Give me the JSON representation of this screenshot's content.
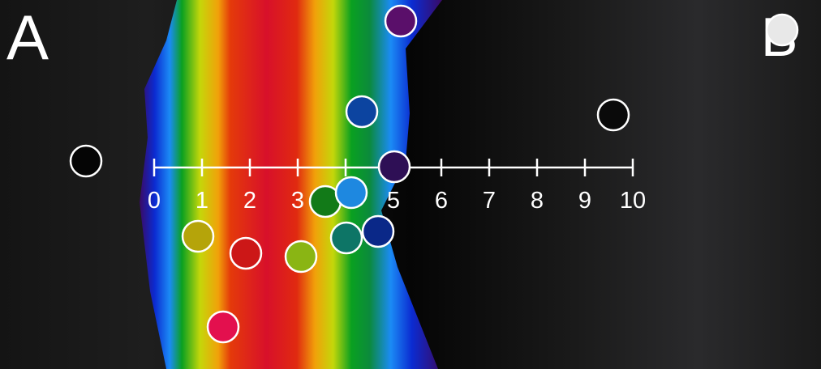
{
  "panel_labels": {
    "left": "A",
    "right": "B"
  },
  "scale": {
    "min": 0,
    "max": 10,
    "ticks": [
      "0",
      "1",
      "2",
      "3",
      "4",
      "5",
      "6",
      "7",
      "8",
      "9",
      "10"
    ]
  },
  "colors": {
    "background": "#0b0b0b",
    "scale_line": "#ffffff",
    "marker_stroke": "#ffffff",
    "band_stops": [
      "#3a0a66",
      "#0b2bd1",
      "#1b8bf5",
      "#0b8a3c",
      "#0aa020",
      "#c4d70a",
      "#f1a10a",
      "#e43a0a",
      "#d8102a",
      "#c4103a"
    ]
  },
  "markers": [
    {
      "id": "m1",
      "color": "#e3104e"
    },
    {
      "id": "m2",
      "color": "#cc1717"
    },
    {
      "id": "m3",
      "color": "#b5a40a"
    },
    {
      "id": "m4",
      "color": "#8ab514"
    },
    {
      "id": "m5",
      "color": "#127a18"
    },
    {
      "id": "m6",
      "color": "#1e88e0"
    },
    {
      "id": "m7",
      "color": "#0d7566"
    },
    {
      "id": "m8",
      "color": "#0a2888"
    },
    {
      "id": "m9",
      "color": "#0c44a0"
    },
    {
      "id": "m10",
      "color": "#2e0f55"
    },
    {
      "id": "m11",
      "color": "#5a0f6a"
    },
    {
      "id": "m12",
      "color": "#050505"
    },
    {
      "id": "m13",
      "color": "#0a0a0a"
    },
    {
      "id": "m14",
      "color": "#e8e8e8"
    }
  ]
}
